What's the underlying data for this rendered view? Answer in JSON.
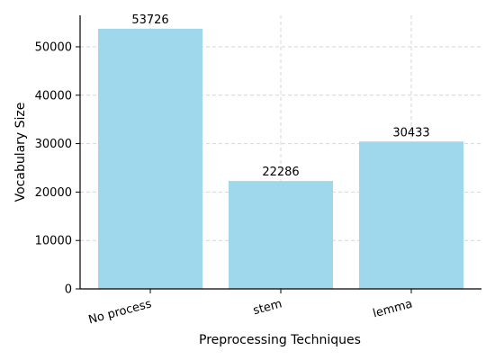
{
  "chart_data": {
    "type": "bar",
    "title": "",
    "xlabel": "Preprocessing Techniques",
    "ylabel": "Vocabulary Size",
    "categories": [
      "No process",
      "stem",
      "lemma"
    ],
    "values": [
      53726,
      22286,
      30433
    ],
    "data_labels": [
      "53726",
      "22286",
      "30433"
    ],
    "ylim": [
      0,
      56500
    ],
    "yticks": [
      0,
      10000,
      20000,
      30000,
      40000,
      50000
    ],
    "ytick_labels": [
      "0",
      "10000",
      "20000",
      "30000",
      "40000",
      "50000"
    ],
    "grid": true,
    "legend": "none",
    "bar_color": "#9fd8ec",
    "grid_color": "#d6d6d6",
    "x_tick_rotation_deg": 15
  }
}
